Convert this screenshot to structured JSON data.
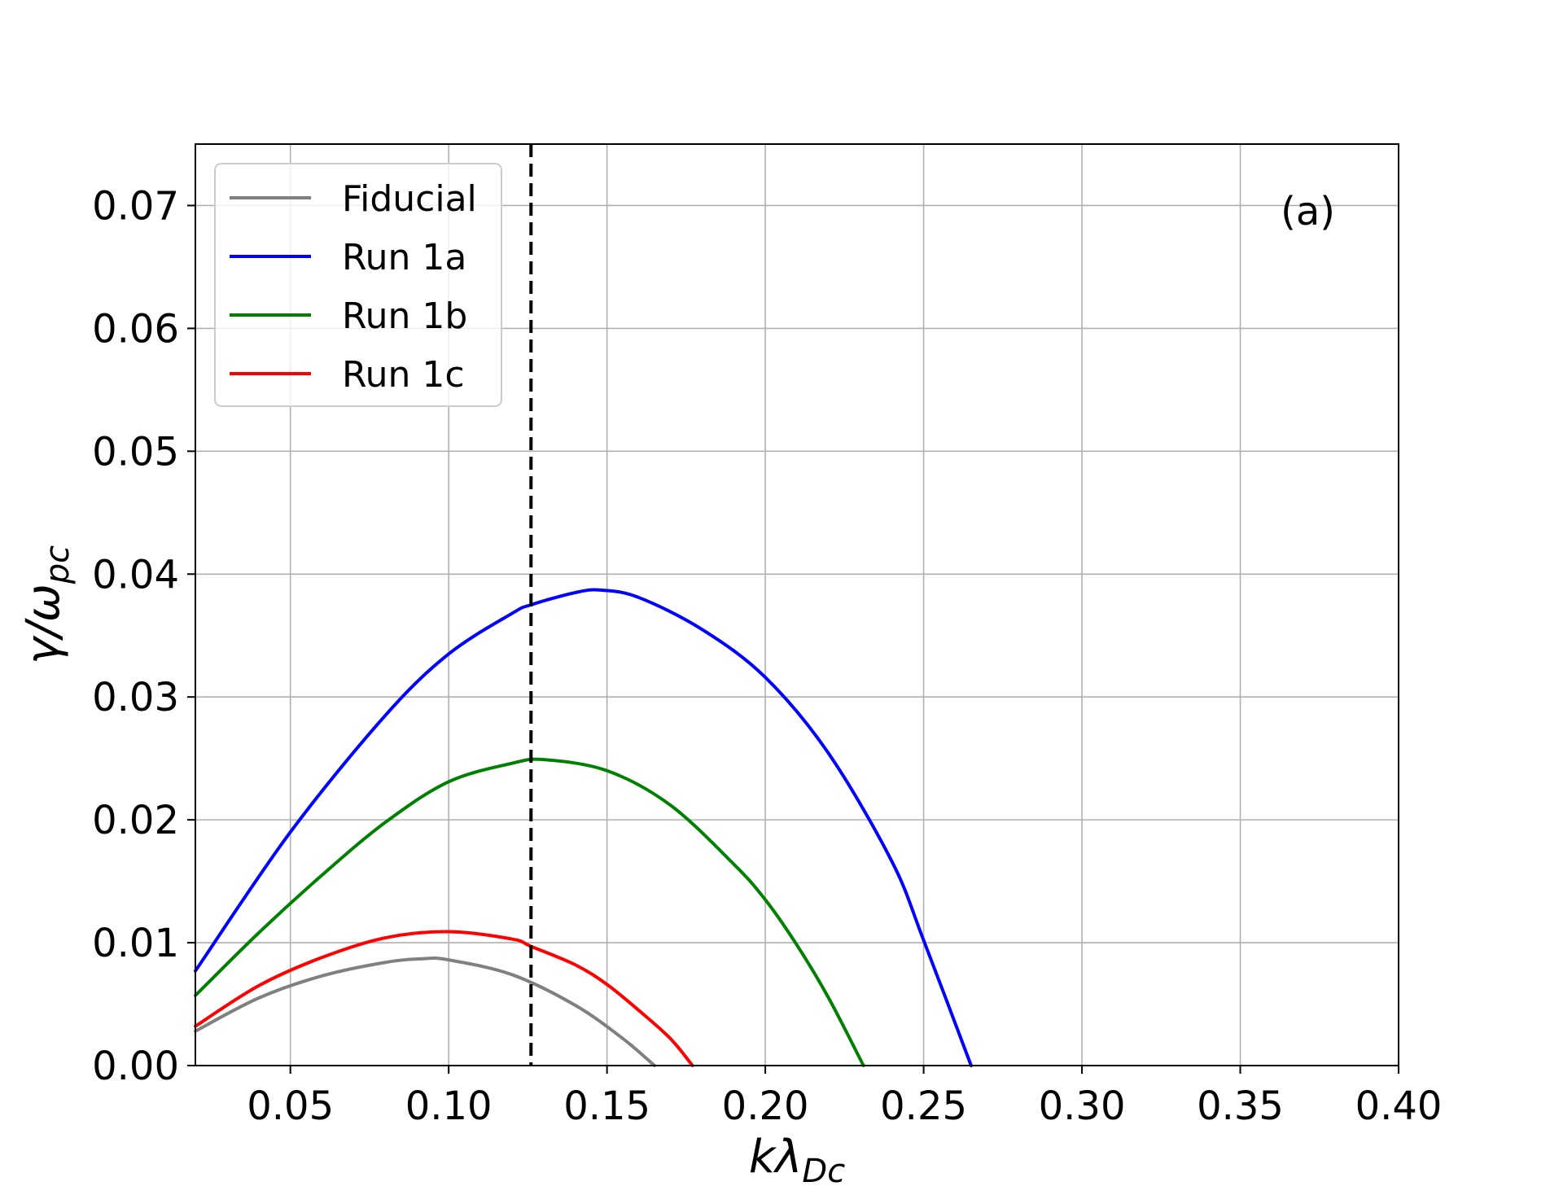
{
  "chart_data": {
    "type": "line",
    "title": "",
    "xlabel": "kλ",
    "xlabel_sub": "Dc",
    "ylabel": "γ/ω",
    "ylabel_sub": "pc",
    "xlim": [
      0.02,
      0.4
    ],
    "ylim": [
      0.0,
      0.075
    ],
    "x_ticks": [
      0.05,
      0.1,
      0.15,
      0.2,
      0.25,
      0.3,
      0.35,
      0.4
    ],
    "x_tick_labels": [
      "0.05",
      "0.10",
      "0.15",
      "0.20",
      "0.25",
      "0.30",
      "0.35",
      "0.40"
    ],
    "y_ticks": [
      0.0,
      0.01,
      0.02,
      0.03,
      0.04,
      0.05,
      0.06,
      0.07
    ],
    "y_tick_labels": [
      "0.00",
      "0.01",
      "0.02",
      "0.03",
      "0.04",
      "0.05",
      "0.06",
      "0.07"
    ],
    "grid": true,
    "legend_position": "top-left",
    "panel_label": "(a)",
    "vline": {
      "x": 0.126,
      "style": "dashed",
      "color": "#000000"
    },
    "series": [
      {
        "name": "Fiducial",
        "color": "#808080",
        "x": [
          0.02,
          0.04,
          0.06,
          0.08,
          0.092,
          0.1,
          0.12,
          0.14,
          0.155,
          0.165
        ],
        "y": [
          0.0028,
          0.0055,
          0.0073,
          0.0084,
          0.0087,
          0.0086,
          0.0074,
          0.0049,
          0.0022,
          0.0
        ]
      },
      {
        "name": "Run 1a",
        "color": "#0000ff",
        "x": [
          0.02,
          0.05,
          0.08,
          0.1,
          0.12,
          0.126,
          0.14,
          0.148,
          0.16,
          0.18,
          0.2,
          0.22,
          0.24,
          0.25,
          0.265
        ],
        "y": [
          0.0077,
          0.019,
          0.0285,
          0.0335,
          0.0368,
          0.0375,
          0.0385,
          0.0387,
          0.0381,
          0.0355,
          0.0316,
          0.0254,
          0.0166,
          0.0102,
          0.0
        ]
      },
      {
        "name": "Run 1b",
        "color": "#008000",
        "x": [
          0.02,
          0.04,
          0.06,
          0.08,
          0.1,
          0.12,
          0.13,
          0.15,
          0.17,
          0.19,
          0.2,
          0.21,
          0.22,
          0.231
        ],
        "y": [
          0.0057,
          0.0108,
          0.0155,
          0.0198,
          0.0231,
          0.0246,
          0.0249,
          0.024,
          0.0212,
          0.0164,
          0.0135,
          0.0098,
          0.0055,
          0.0
        ]
      },
      {
        "name": "Run 1c",
        "color": "#ff0000",
        "x": [
          0.02,
          0.04,
          0.06,
          0.08,
          0.1,
          0.12,
          0.126,
          0.14,
          0.15,
          0.16,
          0.17,
          0.177
        ],
        "y": [
          0.0032,
          0.0065,
          0.0088,
          0.0104,
          0.0109,
          0.0103,
          0.0097,
          0.0082,
          0.0066,
          0.0045,
          0.0022,
          0.0
        ]
      }
    ]
  }
}
